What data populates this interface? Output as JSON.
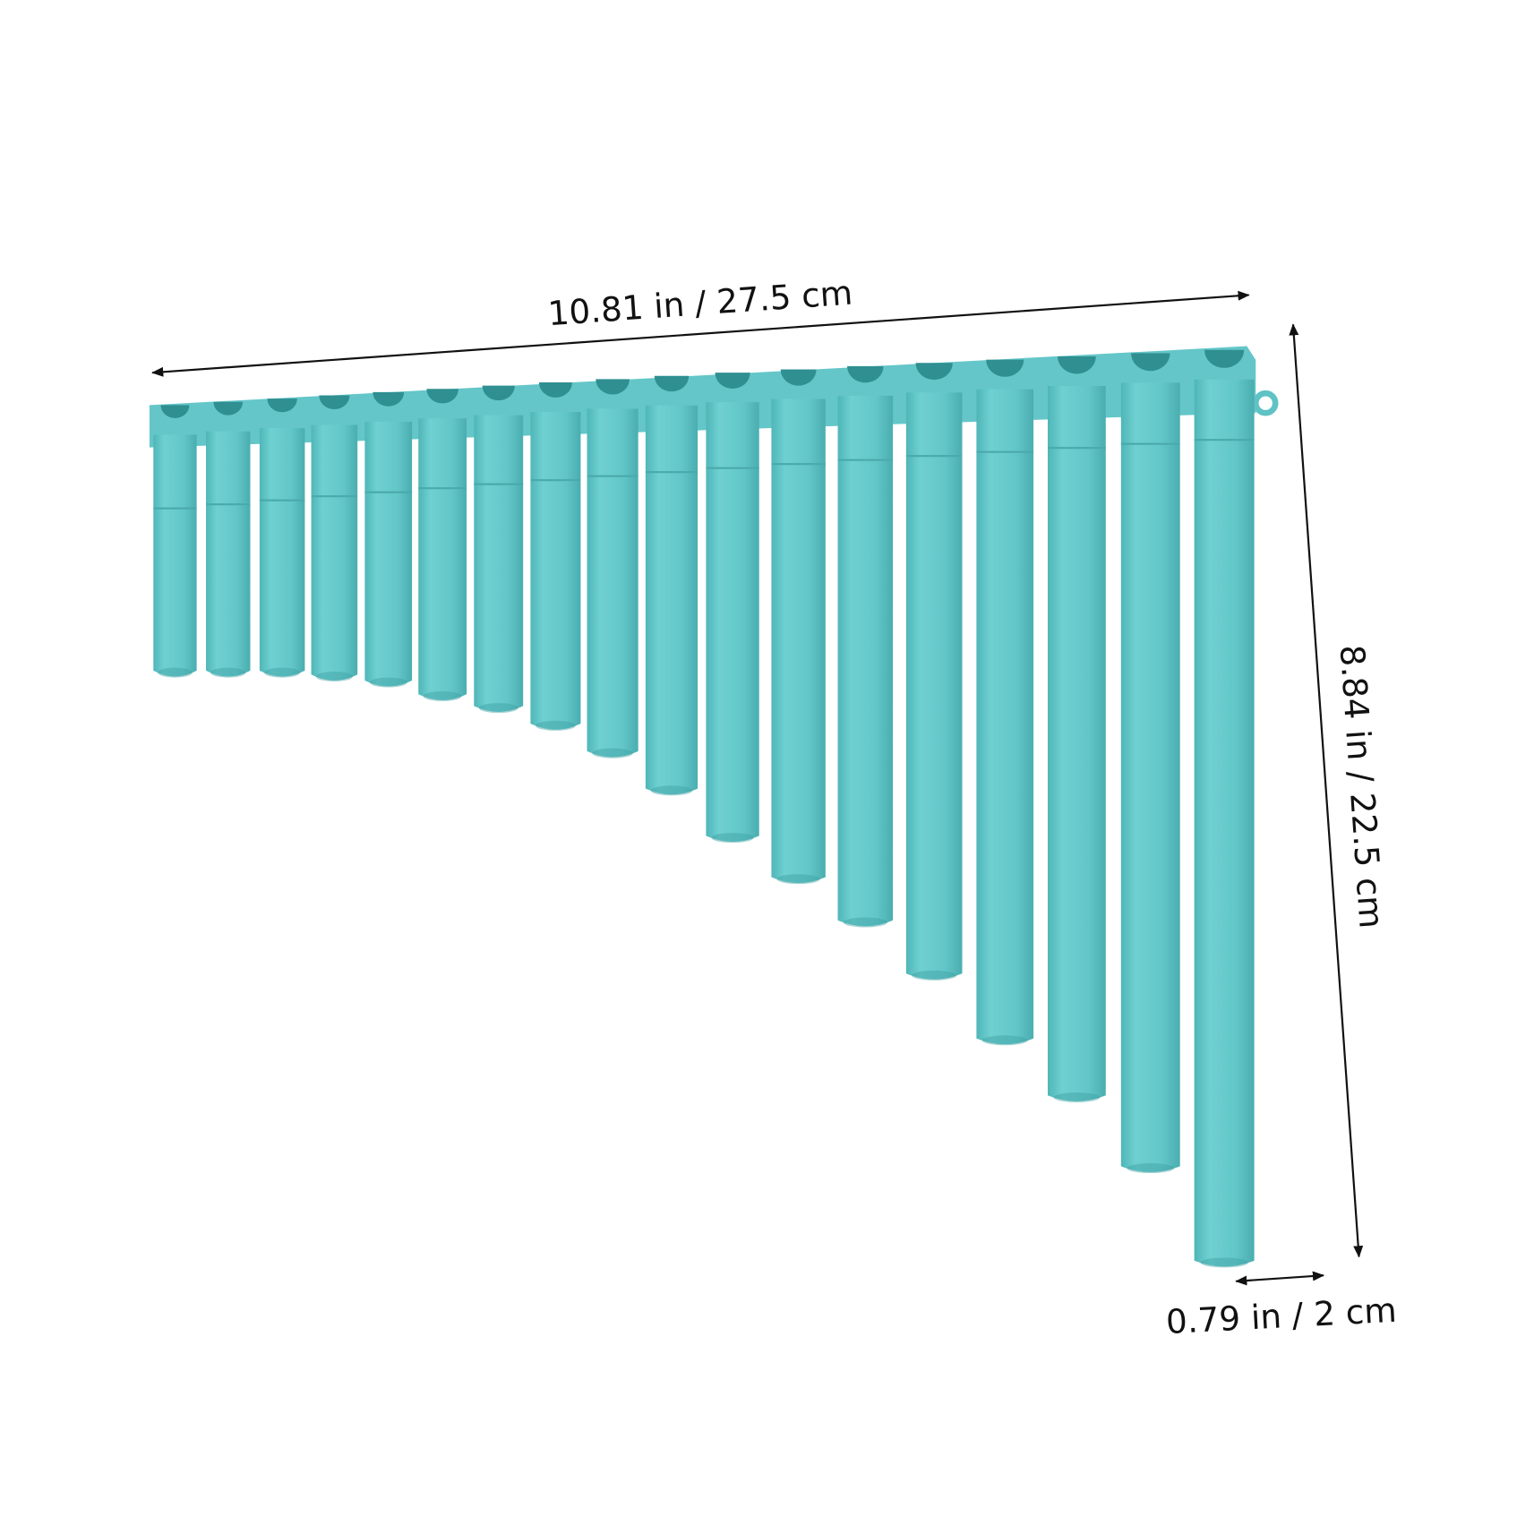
{
  "dimensions": {
    "width": "10.81 in / 27.5 cm",
    "height": "8.84 in / 22.5 cm",
    "pipe_diameter": "0.79 in / 2 cm"
  }
}
